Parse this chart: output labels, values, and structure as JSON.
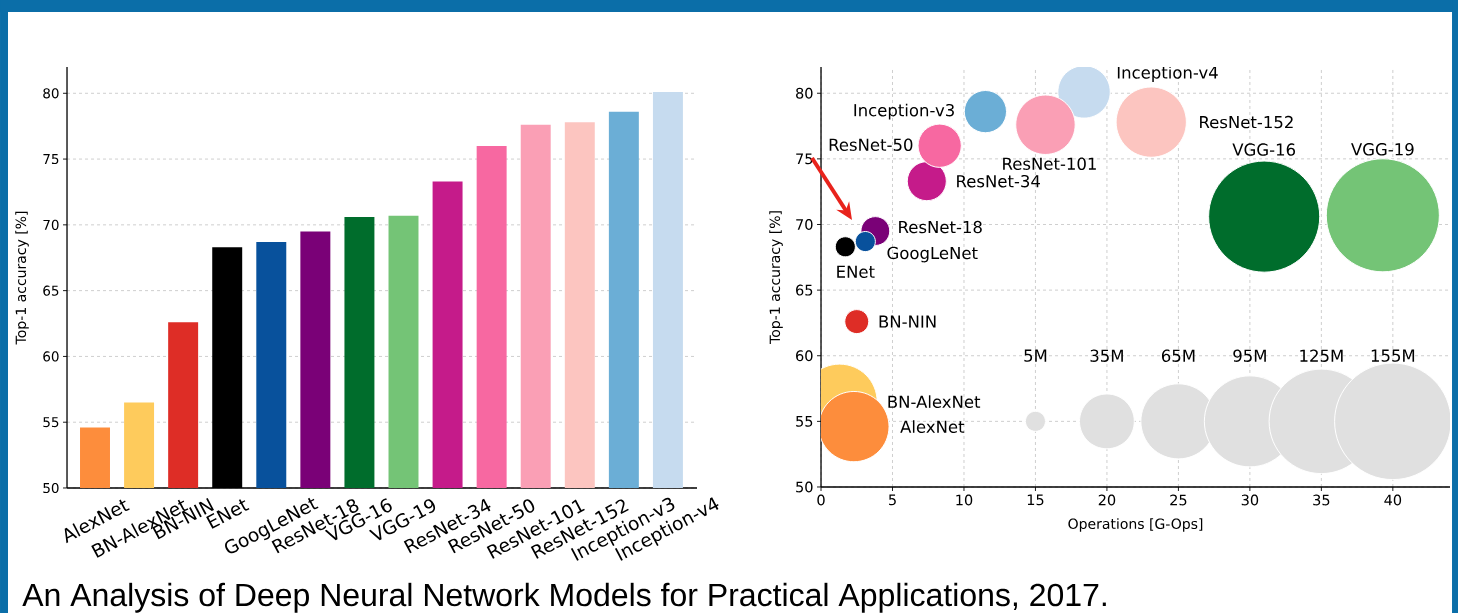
{
  "chart_data": [
    {
      "type": "bar",
      "categories": [
        "AlexNet",
        "BN-AlexNet",
        "BN-NIN",
        "ENet",
        "GoogLeNet",
        "ResNet-18",
        "VGG-16",
        "VGG-19",
        "ResNet-34",
        "ResNet-50",
        "ResNet-101",
        "ResNet-152",
        "Inception-v3",
        "Inception-v4"
      ],
      "values": [
        54.6,
        56.5,
        62.6,
        68.3,
        68.7,
        69.5,
        70.6,
        70.7,
        73.3,
        76.0,
        77.6,
        77.8,
        78.6,
        80.1
      ],
      "colors": [
        "#fd8d3c",
        "#fecb5c",
        "#de2d26",
        "#000000",
        "#08519c",
        "#7a0177",
        "#006d2c",
        "#74c476",
        "#c51b8a",
        "#f768a1",
        "#fa9fb5",
        "#fcc5c0",
        "#6baed6",
        "#c6dbef"
      ],
      "ylabel": "Top-1 accuracy [%]",
      "ylim": [
        50,
        82
      ],
      "yticks": [
        50,
        55,
        60,
        65,
        70,
        75,
        80
      ],
      "grid": "y",
      "annotations": [
        "An Analysis of Deep Neural Network Models for Practical Applications, 2017."
      ]
    },
    {
      "type": "bubble",
      "xlabel": "Operations [G-Ops]",
      "ylabel": "Top-1 accuracy [%]",
      "xlim": [
        0,
        44
      ],
      "ylim": [
        50,
        82
      ],
      "xticks": [
        0,
        5,
        10,
        15,
        20,
        25,
        30,
        35,
        40
      ],
      "yticks": [
        50,
        55,
        60,
        65,
        70,
        75,
        80
      ],
      "grid": true,
      "size_legend": [
        {
          "value": 5,
          "label": "5M"
        },
        {
          "value": 35,
          "label": "35M"
        },
        {
          "value": 65,
          "label": "65M"
        },
        {
          "value": 95,
          "label": "95M"
        },
        {
          "value": 125,
          "label": "125M"
        },
        {
          "value": 155,
          "label": "155M"
        }
      ],
      "series": [
        {
          "name": "BN-AlexNet",
          "color": "#fecb5c",
          "x": [
            1.3
          ],
          "values": [
            56.5
          ],
          "sizes": [
            65
          ]
        },
        {
          "name": "AlexNet",
          "color": "#fd8d3c",
          "x": [
            2.3
          ],
          "values": [
            54.6
          ],
          "sizes": [
            57
          ]
        },
        {
          "name": "BN-NIN",
          "color": "#de2d26",
          "x": [
            2.5
          ],
          "values": [
            62.6
          ],
          "sizes": [
            7
          ]
        },
        {
          "name": "ENet",
          "color": "#000000",
          "x": [
            1.7
          ],
          "values": [
            68.3
          ],
          "sizes": [
            5
          ]
        },
        {
          "name": "ResNet-18",
          "color": "#7a0177",
          "x": [
            3.8
          ],
          "values": [
            69.5
          ],
          "sizes": [
            10
          ]
        },
        {
          "name": "GoogLeNet",
          "color": "#08519c",
          "x": [
            3.1
          ],
          "values": [
            68.7
          ],
          "sizes": [
            5
          ]
        },
        {
          "name": "ResNet-34",
          "color": "#c51b8a",
          "x": [
            7.4
          ],
          "values": [
            73.3
          ],
          "sizes": [
            18
          ]
        },
        {
          "name": "ResNet-50",
          "color": "#f768a1",
          "x": [
            8.3
          ],
          "values": [
            76.0
          ],
          "sizes": [
            22
          ]
        },
        {
          "name": "Inception-v3",
          "color": "#6baed6",
          "x": [
            11.5
          ],
          "values": [
            78.6
          ],
          "sizes": [
            21
          ]
        },
        {
          "name": "Inception-v4",
          "color": "#c6dbef",
          "x": [
            18.4
          ],
          "values": [
            80.1
          ],
          "sizes": [
            32
          ]
        },
        {
          "name": "ResNet-101",
          "color": "#fa9fb5",
          "x": [
            15.7
          ],
          "values": [
            77.6
          ],
          "sizes": [
            41
          ]
        },
        {
          "name": "ResNet-152",
          "color": "#fcc5c0",
          "x": [
            23.1
          ],
          "values": [
            77.8
          ],
          "sizes": [
            57
          ]
        },
        {
          "name": "VGG-16",
          "color": "#006d2c",
          "x": [
            31.0
          ],
          "values": [
            70.6
          ],
          "sizes": [
            141
          ]
        },
        {
          "name": "VGG-19",
          "color": "#74c476",
          "x": [
            39.3
          ],
          "values": [
            70.7
          ],
          "sizes": [
            146
          ]
        }
      ]
    }
  ]
}
